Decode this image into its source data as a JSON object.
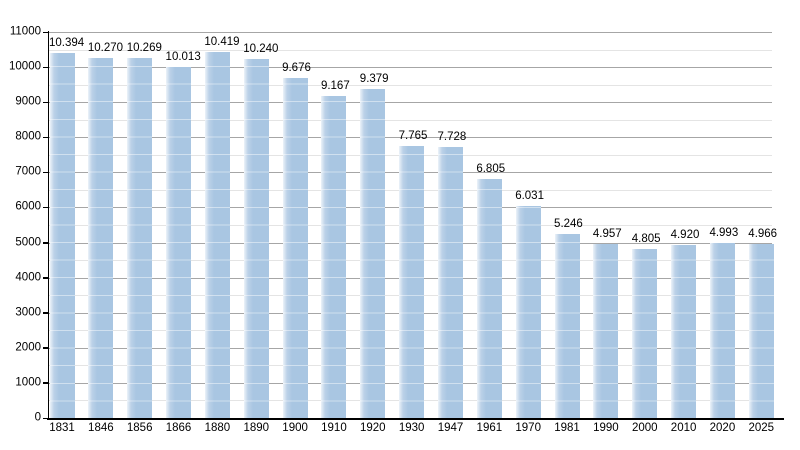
{
  "chart_data": {
    "type": "bar",
    "title": "",
    "xlabel": "",
    "ylabel": "",
    "categories": [
      "1831",
      "1846",
      "1856",
      "1866",
      "1880",
      "1890",
      "1900",
      "1910",
      "1920",
      "1930",
      "1947",
      "1961",
      "1970",
      "1981",
      "1990",
      "2000",
      "2010",
      "2020",
      "2025"
    ],
    "values": [
      10394,
      10270,
      10269,
      10013,
      10419,
      10240,
      9676,
      9167,
      9379,
      7765,
      7728,
      6805,
      6031,
      5246,
      4957,
      4805,
      4920,
      4993,
      4966
    ],
    "value_labels": [
      "10.394",
      "10.270",
      "10.269",
      "10.013",
      "10.419",
      "10.240",
      "9.676",
      "9.167",
      "9.379",
      "7.765",
      "7.728",
      "6.805",
      "6.031",
      "5.246",
      "4.957",
      "4.805",
      "4.920",
      "4.993",
      "4.966"
    ],
    "ylim": [
      0,
      11000
    ],
    "y_major_step": 1000,
    "y_minor_step": 500,
    "y_tick_labels": [
      "0",
      "1000",
      "2000",
      "3000",
      "4000",
      "5000",
      "6000",
      "7000",
      "8000",
      "9000",
      "10000",
      "11000"
    ],
    "grid": true,
    "legend": "none",
    "colors": {
      "bar_fill": "#a9c6e2",
      "bar_fill_light": "#ecf3f9",
      "grid_major": "#a6a6a6",
      "grid_minor": "#e4e4e4",
      "axis": "#000000",
      "background": "#ffffff",
      "text": "#000000"
    }
  }
}
